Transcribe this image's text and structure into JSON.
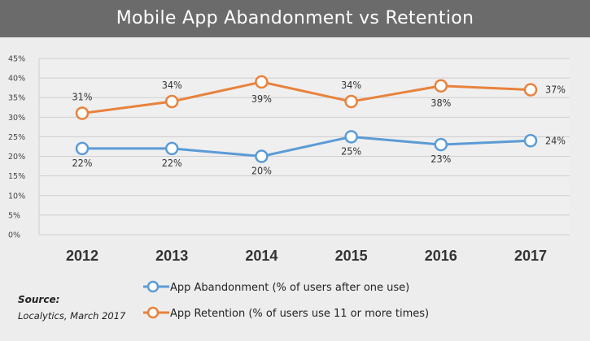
{
  "title": "Mobile App Abandonment vs Retention",
  "source": {
    "label": "Source:",
    "text": "Localytics, March 2017"
  },
  "chart_data": {
    "type": "line",
    "x": [
      "2012",
      "2013",
      "2014",
      "2015",
      "2016",
      "2017"
    ],
    "ylim": [
      0,
      45
    ],
    "y_ticks": [
      "0%",
      "5%",
      "10%",
      "15%",
      "20%",
      "25%",
      "30%",
      "35%",
      "40%",
      "45%"
    ],
    "grid": true,
    "legend_position": "bottom",
    "series": [
      {
        "name": "App Abandonment (% of users after one use)",
        "values": [
          22,
          22,
          20,
          25,
          23,
          24
        ],
        "labels": [
          "22%",
          "22%",
          "20%",
          "25%",
          "23%",
          "24%"
        ],
        "color": "#5b9bd5"
      },
      {
        "name": "App Retention (% of users use 11 or more times)",
        "values": [
          31,
          34,
          39,
          34,
          38,
          37
        ],
        "labels": [
          "31%",
          "34%",
          "39%",
          "34%",
          "38%",
          "37%"
        ],
        "color": "#e8823c"
      }
    ]
  }
}
